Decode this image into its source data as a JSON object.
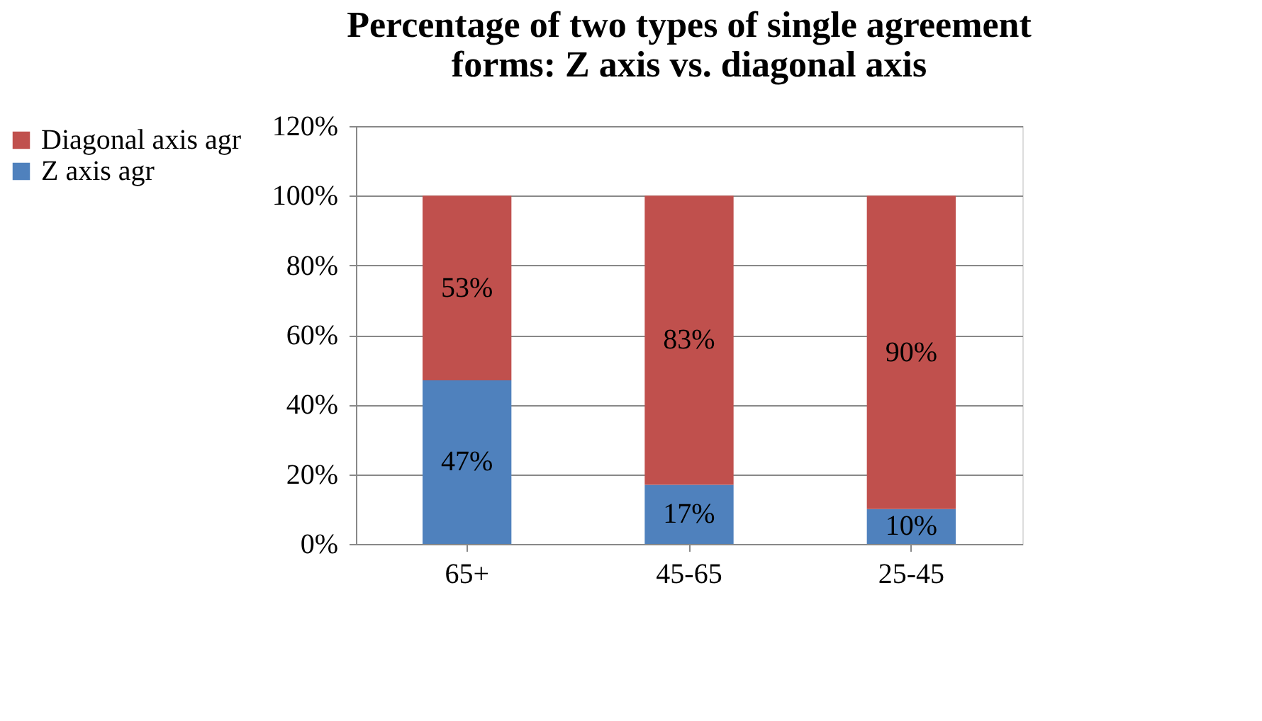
{
  "chart_data": {
    "type": "bar",
    "title": "Percentage of two types of single agreement forms: Z axis vs. diagonal axis",
    "categories": [
      "65+",
      "45-65",
      "25-45"
    ],
    "stacked": true,
    "series": [
      {
        "name": "Z axis agr",
        "color": "#4f81bd",
        "values": [
          47,
          17,
          10
        ],
        "value_labels": [
          "47%",
          "17%",
          "10%"
        ]
      },
      {
        "name": "Diagonal axis agr",
        "color": "#c0504d",
        "values": [
          53,
          83,
          90
        ],
        "value_labels": [
          "53%",
          "83%",
          "90%"
        ]
      }
    ],
    "ylim": [
      0,
      120
    ],
    "yticks": [
      {
        "value": 0,
        "label": "0%"
      },
      {
        "value": 20,
        "label": "20%"
      },
      {
        "value": 40,
        "label": "40%"
      },
      {
        "value": 60,
        "label": "60%"
      },
      {
        "value": 80,
        "label": "80%"
      },
      {
        "value": 100,
        "label": "100%"
      },
      {
        "value": 120,
        "label": "120%"
      }
    ],
    "grid": "y",
    "legend": "left"
  }
}
